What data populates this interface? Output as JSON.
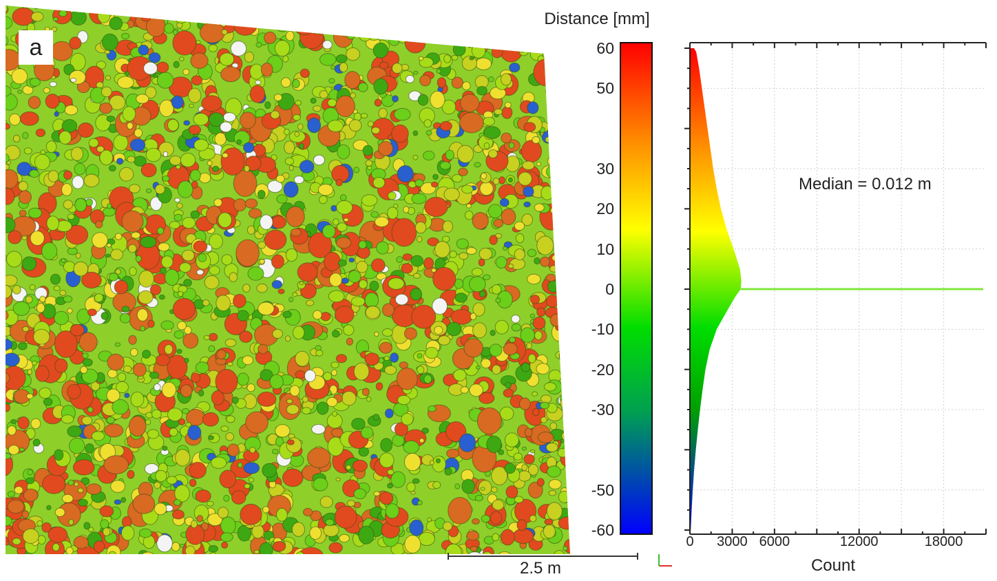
{
  "panel_label": "a",
  "scale_bar": {
    "label": "2.5 m"
  },
  "colorbar": {
    "title": "Distance [mm]",
    "ticks": [
      60,
      50,
      30,
      20,
      10,
      0,
      -10,
      -20,
      -30,
      -50,
      -60
    ],
    "range": [
      -60,
      60
    ],
    "colors": [
      "#0000ff",
      "#00a000",
      "#00dd00",
      "#ffff00",
      "#ff8c00",
      "#ff0000"
    ]
  },
  "map_palette": [
    "#e14a1e",
    "#d86a22",
    "#c8d020",
    "#a8dc18",
    "#6ccf1a",
    "#3ea812",
    "#efe030",
    "#2a5fd0",
    "#f4f4f4"
  ],
  "chart_data": {
    "type": "area",
    "orientation": "horizontal-histogram",
    "xlabel": "Count",
    "xticks": [
      0,
      3000,
      6000,
      12000,
      18000
    ],
    "xlim": [
      0,
      21000
    ],
    "ylim": [
      -60,
      60
    ],
    "annotation": "Median = 0.012 m",
    "series": [
      {
        "y": [
          -60,
          -55,
          -50,
          -45,
          -40,
          -35,
          -30,
          -25,
          -20,
          -15,
          -10,
          -5,
          -2,
          0,
          2,
          5,
          10,
          15,
          20,
          25,
          30,
          35,
          40,
          45,
          50,
          55,
          59,
          60
        ],
        "count": [
          60,
          120,
          200,
          300,
          420,
          560,
          720,
          900,
          1100,
          1400,
          1900,
          2700,
          3200,
          3600,
          3650,
          3550,
          3100,
          2600,
          2200,
          1900,
          1650,
          1450,
          1250,
          1050,
          850,
          650,
          450,
          300
        ]
      }
    ],
    "spike": {
      "y": 0,
      "count": 20800
    }
  }
}
